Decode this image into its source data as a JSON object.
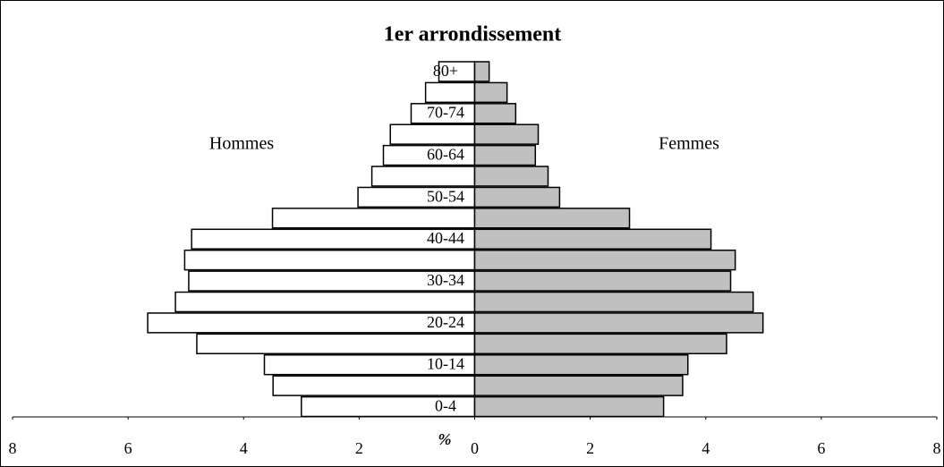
{
  "chart_data": {
    "type": "pyramid",
    "title": "1er arrondissement",
    "xlabel": "%",
    "categories": [
      "0-4",
      null,
      "10-14",
      null,
      "20-24",
      null,
      "30-34",
      null,
      "40-44",
      null,
      "50-54",
      null,
      "60-64",
      null,
      "70-74",
      null,
      "80+"
    ],
    "series": [
      {
        "name": "Hommes",
        "color": "#ffffff",
        "side": "left",
        "values": [
          3.0,
          3.49,
          3.64,
          4.81,
          5.66,
          5.18,
          4.95,
          5.02,
          4.9,
          3.5,
          2.02,
          1.78,
          1.58,
          1.46,
          1.1,
          0.85,
          0.62
        ]
      },
      {
        "name": "Femmes",
        "color": "#c0c0c0",
        "side": "right",
        "values": [
          3.27,
          3.6,
          3.69,
          4.36,
          4.99,
          4.82,
          4.43,
          4.51,
          4.09,
          2.68,
          1.47,
          1.27,
          1.05,
          1.1,
          0.71,
          0.56,
          0.25
        ]
      }
    ],
    "xlim": [
      -8,
      8
    ],
    "xticks": [
      {
        "value": -8,
        "label": "8"
      },
      {
        "value": -6,
        "label": "6"
      },
      {
        "value": -4,
        "label": "4"
      },
      {
        "value": -2,
        "label": "2"
      },
      0,
      2,
      4,
      6,
      8
    ]
  }
}
